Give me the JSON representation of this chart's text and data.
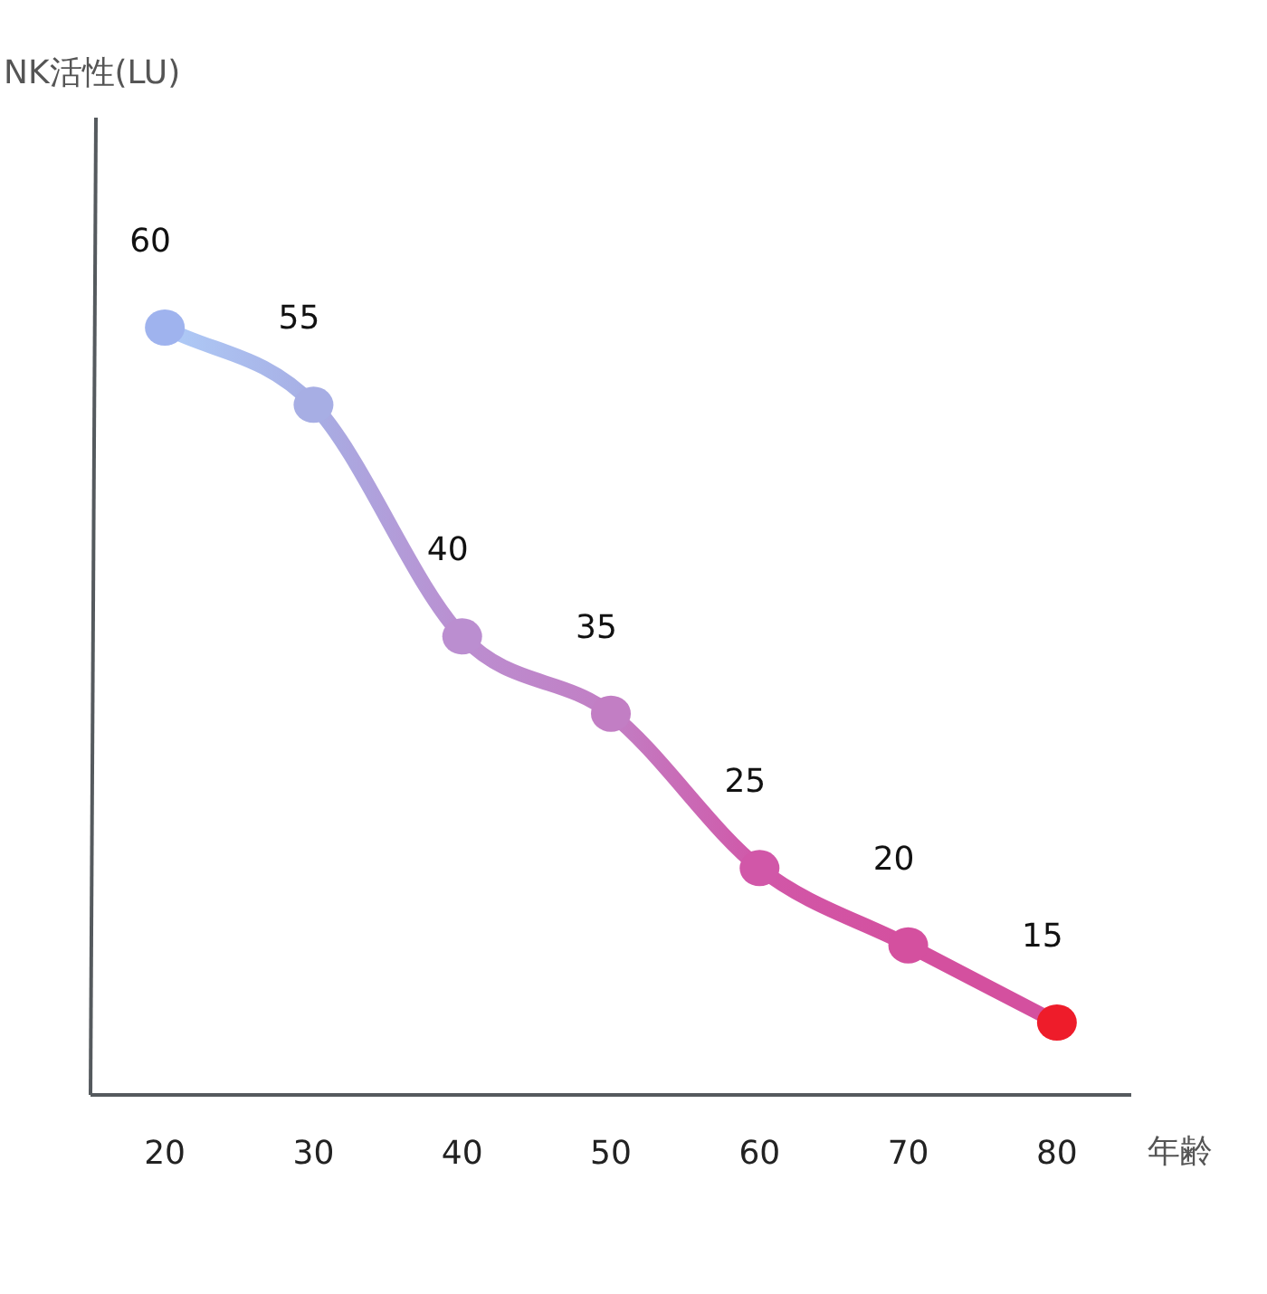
{
  "chart_data": {
    "type": "line",
    "xlabel": "年齢",
    "annotations": [
      "NK活性(LU)"
    ],
    "categories": [
      "20",
      "30",
      "40",
      "50",
      "60",
      "70",
      "80"
    ],
    "series": [
      {
        "color": "#aecbf7",
        "colors": [
          "#9fb3ee",
          "#a7aee4",
          "#bb8ed0",
          "#c27ec4",
          "#d157a8",
          "#d4509f",
          "#ee1c2a"
        ],
        "values": [
          60,
          55,
          40,
          35,
          25,
          20,
          15
        ]
      }
    ],
    "data_labels": true,
    "marker": "circle"
  }
}
